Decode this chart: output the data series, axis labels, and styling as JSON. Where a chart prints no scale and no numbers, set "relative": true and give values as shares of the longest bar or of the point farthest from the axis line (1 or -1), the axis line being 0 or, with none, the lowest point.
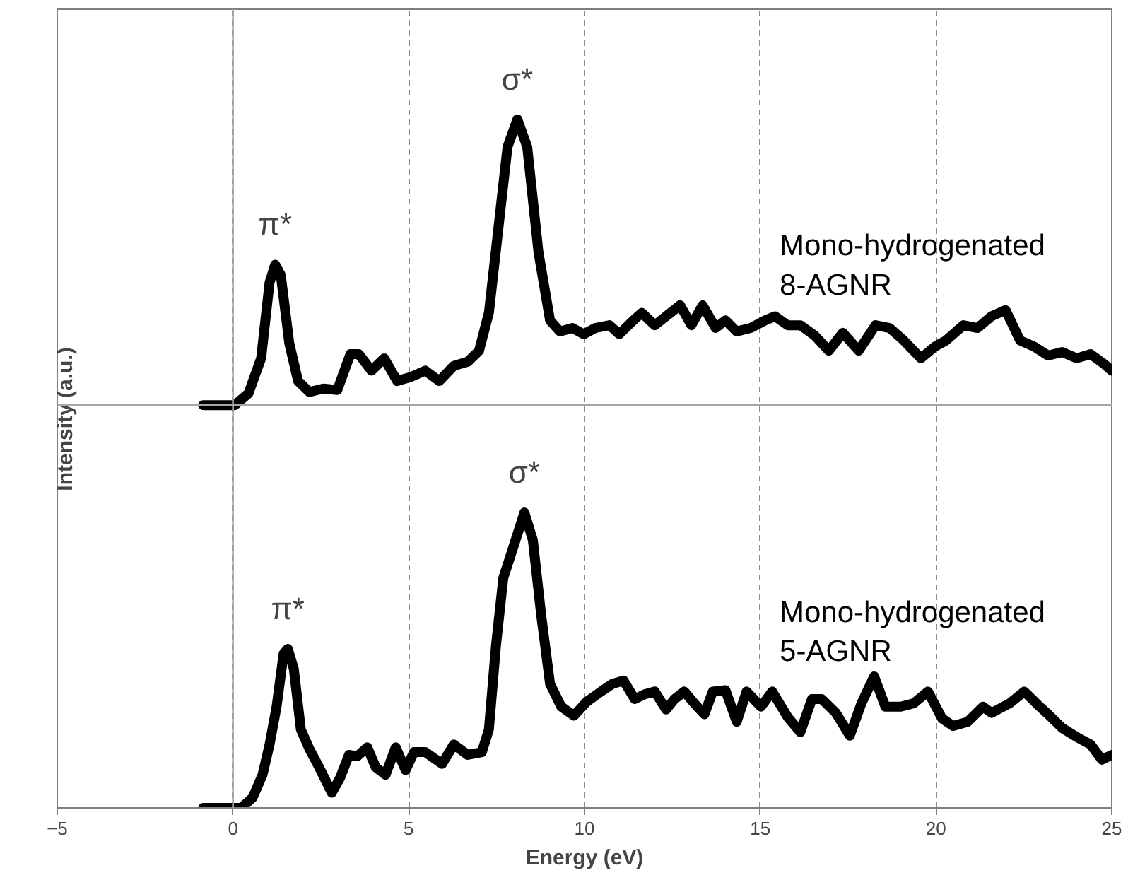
{
  "chart_data": {
    "type": "line",
    "relative": true,
    "xlabel": "Energy (eV)",
    "ylabel": "Intensity (a.u.)",
    "xlim": [
      -5,
      25
    ],
    "xticks": [
      -5,
      0,
      5,
      10,
      15,
      20,
      25
    ],
    "grid": "x",
    "line_style": "solid",
    "series": [
      {
        "name": "Mono-hydrogenated\n8-AGNR",
        "color": "#000000",
        "x": [
          -0.85,
          0.05,
          0.44,
          0.8,
          1.04,
          1.2,
          1.36,
          1.6,
          1.85,
          2.17,
          2.57,
          2.97,
          3.34,
          3.58,
          3.94,
          4.3,
          4.67,
          5.07,
          5.47,
          5.87,
          6.28,
          6.68,
          7.0,
          7.28,
          7.57,
          7.81,
          8.09,
          8.37,
          8.69,
          9.02,
          9.3,
          9.66,
          9.98,
          10.3,
          10.71,
          10.99,
          11.39,
          11.63,
          12.0,
          12.32,
          12.72,
          13.04,
          13.36,
          13.73,
          14.01,
          14.33,
          14.73,
          15.14,
          15.42,
          15.78,
          16.14,
          16.55,
          16.95,
          17.35,
          17.8,
          18.28,
          18.68,
          19.08,
          19.57,
          19.97,
          20.29,
          20.78,
          21.18,
          21.58,
          21.98,
          22.39,
          22.79,
          23.19,
          23.59,
          24.0,
          24.4,
          24.8,
          25.0
        ],
        "values": [
          0.585,
          0.585,
          0.602,
          0.653,
          0.763,
          0.789,
          0.774,
          0.675,
          0.62,
          0.604,
          0.609,
          0.607,
          0.659,
          0.659,
          0.635,
          0.653,
          0.62,
          0.626,
          0.635,
          0.62,
          0.642,
          0.648,
          0.664,
          0.719,
          0.851,
          0.96,
          1.0,
          0.96,
          0.807,
          0.708,
          0.692,
          0.697,
          0.688,
          0.697,
          0.701,
          0.688,
          0.708,
          0.719,
          0.701,
          0.714,
          0.73,
          0.701,
          0.73,
          0.697,
          0.708,
          0.692,
          0.697,
          0.708,
          0.714,
          0.701,
          0.701,
          0.686,
          0.664,
          0.69,
          0.664,
          0.701,
          0.697,
          0.679,
          0.653,
          0.67,
          0.679,
          0.701,
          0.697,
          0.714,
          0.723,
          0.679,
          0.67,
          0.657,
          0.662,
          0.653,
          0.659,
          0.644,
          0.635
        ]
      },
      {
        "name": "Mono-hydrogenated\n5-AGNR",
        "color": "#000000",
        "x": [
          -0.85,
          0.24,
          0.56,
          0.84,
          1.04,
          1.24,
          1.44,
          1.56,
          1.73,
          1.93,
          2.17,
          2.45,
          2.81,
          3.05,
          3.3,
          3.54,
          3.82,
          4.06,
          4.34,
          4.63,
          4.91,
          5.15,
          5.47,
          5.95,
          6.28,
          6.68,
          7.08,
          7.28,
          7.48,
          7.69,
          7.97,
          8.29,
          8.53,
          8.77,
          9.02,
          9.34,
          9.7,
          10.06,
          10.47,
          10.79,
          11.11,
          11.43,
          11.71,
          12.0,
          12.32,
          12.56,
          12.84,
          13.12,
          13.41,
          13.65,
          14.01,
          14.33,
          14.61,
          15.02,
          15.34,
          15.78,
          16.14,
          16.47,
          16.75,
          17.15,
          17.55,
          17.88,
          18.24,
          18.56,
          19.0,
          19.37,
          19.77,
          20.17,
          20.49,
          20.9,
          21.34,
          21.58,
          22.1,
          22.51,
          22.91,
          23.19,
          23.59,
          24.0,
          24.4,
          24.72,
          25.0
        ],
        "values": [
          0,
          0,
          0.015,
          0.048,
          0.092,
          0.147,
          0.224,
          0.231,
          0.202,
          0.114,
          0.086,
          0.059,
          0.022,
          0.044,
          0.077,
          0.075,
          0.088,
          0.059,
          0.048,
          0.088,
          0.055,
          0.081,
          0.081,
          0.064,
          0.092,
          0.077,
          0.081,
          0.114,
          0.235,
          0.334,
          0.378,
          0.429,
          0.389,
          0.279,
          0.18,
          0.147,
          0.134,
          0.154,
          0.169,
          0.18,
          0.185,
          0.158,
          0.165,
          0.169,
          0.143,
          0.158,
          0.169,
          0.152,
          0.136,
          0.169,
          0.171,
          0.125,
          0.169,
          0.147,
          0.169,
          0.132,
          0.11,
          0.158,
          0.158,
          0.138,
          0.105,
          0.152,
          0.191,
          0.147,
          0.147,
          0.152,
          0.169,
          0.13,
          0.119,
          0.125,
          0.147,
          0.138,
          0.152,
          0.169,
          0.149,
          0.136,
          0.116,
          0.103,
          0.092,
          0.07,
          0.077
        ]
      }
    ],
    "annotations": [
      {
        "text": "π*",
        "x": 1.2,
        "y": 0.789
      },
      {
        "text": "σ*",
        "x": 8.09,
        "y": 1.0
      },
      {
        "text": "π*",
        "x": 1.56,
        "y": 0.231
      },
      {
        "text": "σ*",
        "x": 8.29,
        "y": 0.429
      }
    ],
    "ref_lines": [
      {
        "axis": "y",
        "value": 0.585,
        "color": "#a6a6a6",
        "line_style": "solid"
      },
      {
        "axis": "x",
        "value": 0,
        "color": "#a6a6a6",
        "line_style": "solid"
      }
    ]
  }
}
